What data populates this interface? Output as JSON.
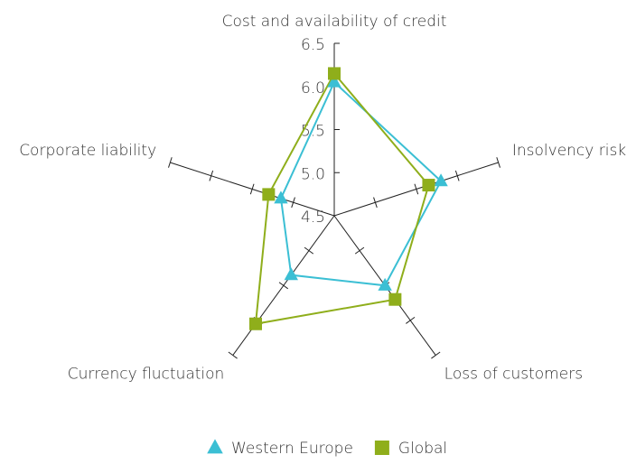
{
  "chart_data": {
    "type": "radar",
    "categories": [
      "Cost and availability of credit",
      "Insolvency risk",
      "Loss of customers",
      "Currency fluctuation",
      "Corporate liability"
    ],
    "rlim": [
      4.5,
      6.5
    ],
    "rticks": [
      4.5,
      {
        "value": 5.0,
        "label": "5.0"
      },
      5.5,
      {
        "value": 6.0,
        "label": "6.0"
      },
      6.5
    ],
    "series": [
      {
        "name": "Western Europe",
        "color": "#3bbfd4",
        "marker": "triangle",
        "values": [
          6.05,
          5.8,
          5.5,
          5.35,
          5.15
        ]
      },
      {
        "name": "Global",
        "color": "#8fae1b",
        "marker": "square",
        "values": [
          6.15,
          5.65,
          5.7,
          6.05,
          5.3
        ]
      }
    ],
    "legend": "bottom"
  }
}
